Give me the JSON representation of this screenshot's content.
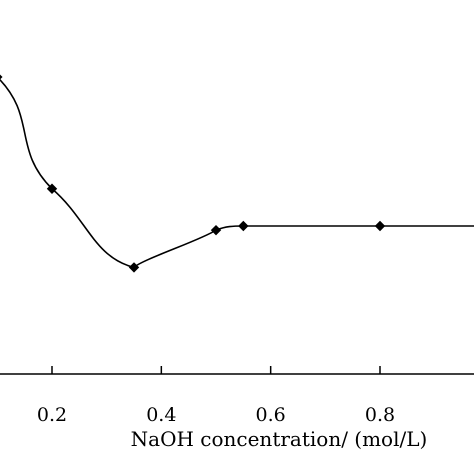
{
  "chart_data": {
    "type": "line",
    "title": "",
    "xlabel": "NaOH concentration/ (mol/L)",
    "ylabel": "",
    "xlim": [
      0.1,
      1.0
    ],
    "x_ticks": [
      0.2,
      0.4,
      0.6,
      0.8
    ],
    "x_tick_labels": [
      "0.2",
      "0.4",
      "0.6",
      "0.8"
    ],
    "grid": false,
    "legend": "none",
    "line_color": "#000000",
    "marker": "diamond",
    "series": [
      {
        "x": [
          0.1,
          0.2,
          0.35,
          0.5,
          0.55,
          0.8
        ],
        "y": [
          0.89,
          0.62,
          0.43,
          0.52,
          0.53,
          0.53
        ],
        "y_note_free": true
      }
    ]
  }
}
